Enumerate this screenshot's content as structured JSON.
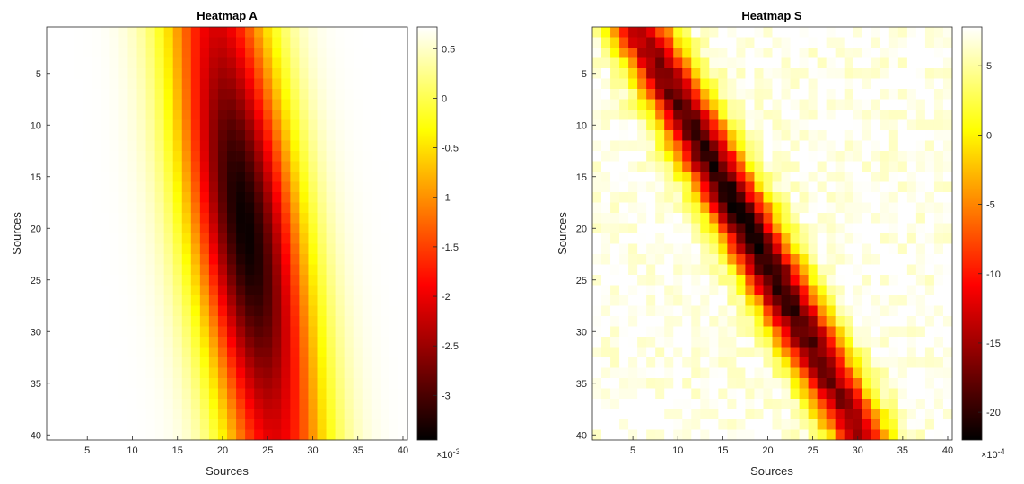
{
  "chart_data": [
    {
      "type": "heatmap",
      "title": "Heatmap A",
      "xlabel": "Sources",
      "ylabel": "Sources",
      "grid_size": 40,
      "x_ticks": [
        5,
        10,
        15,
        20,
        25,
        30,
        35,
        40
      ],
      "y_ticks": [
        5,
        10,
        15,
        20,
        25,
        30,
        35,
        40
      ],
      "x_tick_labels": [
        "5",
        "10",
        "15",
        "20",
        "25",
        "30",
        "35",
        "40"
      ],
      "y_tick_labels": [
        "5",
        "10",
        "15",
        "20",
        "25",
        "30",
        "35",
        "40"
      ],
      "colormap": "hot",
      "clim": [
        -3.45,
        0.72
      ],
      "colorbar_ticks": [
        0.5,
        0,
        -0.5,
        -1,
        -1.5,
        -2,
        -2.5,
        -3
      ],
      "colorbar_tick_labels": [
        "0.5",
        "0",
        "-0.5",
        "-1",
        "-1.5",
        "-2",
        "-2.5",
        "-3"
      ],
      "colorbar_exponent_base": "×10",
      "colorbar_exponent": "-3",
      "pattern": {
        "diagonal_center_at_row1": 19.5,
        "diagonal_slope": 0.16,
        "min_row": 20,
        "min_value": -3.4,
        "edge_max": 0.72,
        "row_width": 18,
        "band_width": 6
      }
    },
    {
      "type": "heatmap",
      "title": "Heatmap S",
      "xlabel": "Sources",
      "ylabel": "Sources",
      "grid_size": 40,
      "x_ticks": [
        5,
        10,
        15,
        20,
        25,
        30,
        35,
        40
      ],
      "y_ticks": [
        5,
        10,
        15,
        20,
        25,
        30,
        35,
        40
      ],
      "x_tick_labels": [
        "5",
        "10",
        "15",
        "20",
        "25",
        "30",
        "35",
        "40"
      ],
      "y_tick_labels": [
        "5",
        "10",
        "15",
        "20",
        "25",
        "30",
        "35",
        "40"
      ],
      "colormap": "hot",
      "clim": [
        -22,
        7.8
      ],
      "colorbar_ticks": [
        5,
        0,
        -5,
        -10,
        -15,
        -20
      ],
      "colorbar_tick_labels": [
        "5",
        "0",
        "-5",
        "-10",
        "-15",
        "-20"
      ],
      "colorbar_exponent_base": "×10",
      "colorbar_exponent": "-4",
      "pattern": {
        "diagonal_center_at_row1": 6,
        "diagonal_slope": 0.62,
        "min_row": 20,
        "min_value": -21,
        "edge_max": 7.5,
        "row_width": 22,
        "band_width": 3.6,
        "noise_amplitude": 1.6
      }
    }
  ]
}
